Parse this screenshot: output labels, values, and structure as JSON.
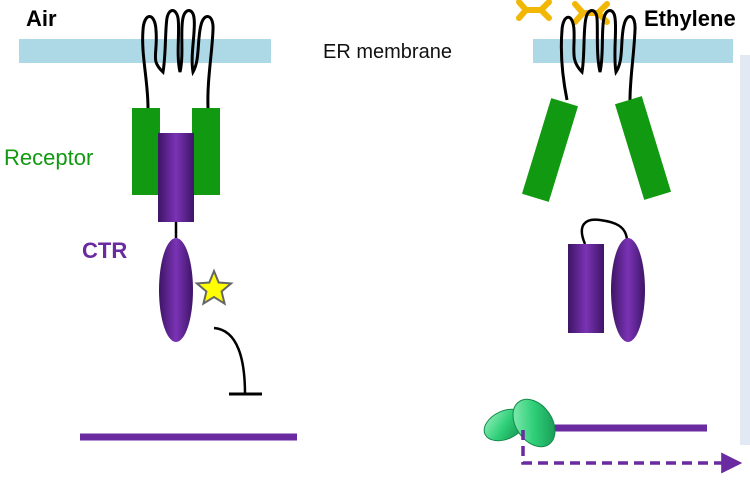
{
  "labels": {
    "left_title": "Air",
    "right_title": "Ethylene",
    "membrane": "ER membrane",
    "receptor": "Receptor",
    "ctr": "CTR"
  },
  "colors": {
    "membrane": "#add8e6",
    "receptor": "#119a11",
    "ctr": "#6a2aa0",
    "ctr_dark": "#4c1a7d",
    "ethylene": "#f2b705",
    "star": "#ffff00",
    "ein_protein": "#2ecf78"
  }
}
